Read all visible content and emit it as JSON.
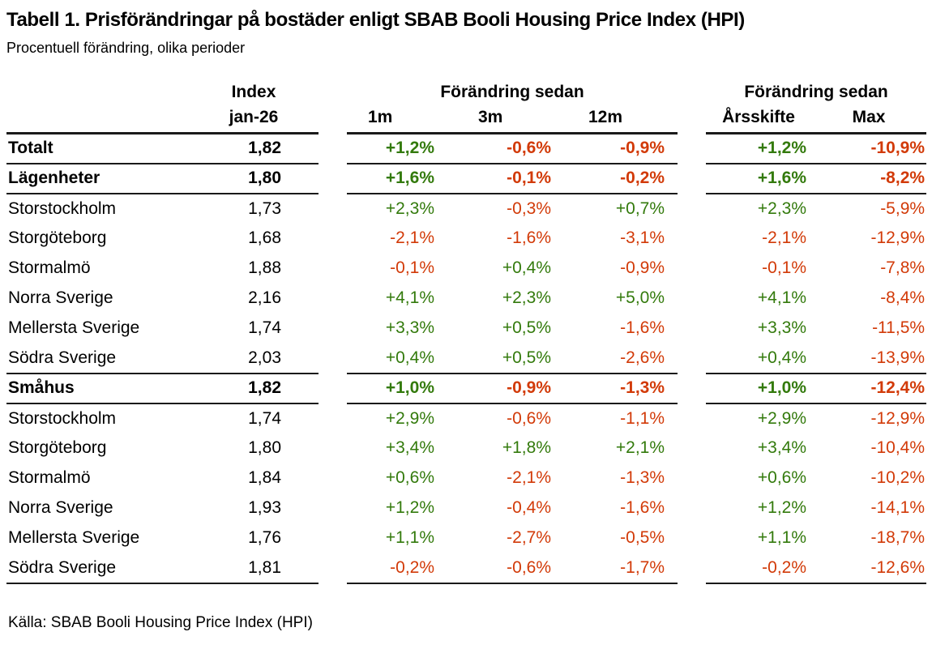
{
  "colors": {
    "positive": "#337a0c",
    "negative": "#d23a08",
    "rule": "#1a1a1a",
    "text": "#000000"
  },
  "chart_data": {
    "type": "table",
    "title": "Tabell 1. Prisförändringar på bostäder enligt SBAB Booli Housing Price Index (HPI)",
    "subtitle": "Procentuell förändring, olika perioder",
    "source": "Källa: SBAB Booli Housing Price Index (HPI)",
    "column_groups": [
      "Index",
      "Förändring sedan",
      "Förändring sedan"
    ],
    "columns": [
      "jan-26",
      "1m",
      "3m",
      "12m",
      "Årsskifte",
      "Max"
    ],
    "rows": [
      {
        "label": "Totalt",
        "index": "1,82",
        "m1": "+1,2%",
        "m3": "-0,6%",
        "m12": "-0,9%",
        "ytd": "+1,2%",
        "max": "-10,9%",
        "bold": true,
        "rule_below": true
      },
      {
        "label": "Lägenheter",
        "index": "1,80",
        "m1": "+1,6%",
        "m3": "-0,1%",
        "m12": "-0,2%",
        "ytd": "+1,6%",
        "max": "-8,2%",
        "bold": true,
        "rule_below": true
      },
      {
        "label": "Storstockholm",
        "index": "1,73",
        "m1": "+2,3%",
        "m3": "-0,3%",
        "m12": "+0,7%",
        "ytd": "+2,3%",
        "max": "-5,9%",
        "bold": false,
        "rule_below": false
      },
      {
        "label": "Storgöteborg",
        "index": "1,68",
        "m1": "-2,1%",
        "m3": "-1,6%",
        "m12": "-3,1%",
        "ytd": "-2,1%",
        "max": "-12,9%",
        "bold": false,
        "rule_below": false
      },
      {
        "label": "Stormalmö",
        "index": "1,88",
        "m1": "-0,1%",
        "m3": "+0,4%",
        "m12": "-0,9%",
        "ytd": "-0,1%",
        "max": "-7,8%",
        "bold": false,
        "rule_below": false
      },
      {
        "label": "Norra Sverige",
        "index": "2,16",
        "m1": "+4,1%",
        "m3": "+2,3%",
        "m12": "+5,0%",
        "ytd": "+4,1%",
        "max": "-8,4%",
        "bold": false,
        "rule_below": false
      },
      {
        "label": "Mellersta Sverige",
        "index": "1,74",
        "m1": "+3,3%",
        "m3": "+0,5%",
        "m12": "-1,6%",
        "ytd": "+3,3%",
        "max": "-11,5%",
        "bold": false,
        "rule_below": false
      },
      {
        "label": "Södra Sverige",
        "index": "2,03",
        "m1": "+0,4%",
        "m3": "+0,5%",
        "m12": "-2,6%",
        "ytd": "+0,4%",
        "max": "-13,9%",
        "bold": false,
        "rule_below": true
      },
      {
        "label": "Småhus",
        "index": "1,82",
        "m1": "+1,0%",
        "m3": "-0,9%",
        "m12": "-1,3%",
        "ytd": "+1,0%",
        "max": "-12,4%",
        "bold": true,
        "rule_below": true
      },
      {
        "label": "Storstockholm",
        "index": "1,74",
        "m1": "+2,9%",
        "m3": "-0,6%",
        "m12": "-1,1%",
        "ytd": "+2,9%",
        "max": "-12,9%",
        "bold": false,
        "rule_below": false
      },
      {
        "label": "Storgöteborg",
        "index": "1,80",
        "m1": "+3,4%",
        "m3": "+1,8%",
        "m12": "+2,1%",
        "ytd": "+3,4%",
        "max": "-10,4%",
        "bold": false,
        "rule_below": false
      },
      {
        "label": "Stormalmö",
        "index": "1,84",
        "m1": "+0,6%",
        "m3": "-2,1%",
        "m12": "-1,3%",
        "ytd": "+0,6%",
        "max": "-10,2%",
        "bold": false,
        "rule_below": false
      },
      {
        "label": "Norra Sverige",
        "index": "1,93",
        "m1": "+1,2%",
        "m3": "-0,4%",
        "m12": "-1,6%",
        "ytd": "+1,2%",
        "max": "-14,1%",
        "bold": false,
        "rule_below": false
      },
      {
        "label": "Mellersta Sverige",
        "index": "1,76",
        "m1": "+1,1%",
        "m3": "-2,7%",
        "m12": "-0,5%",
        "ytd": "+1,1%",
        "max": "-18,7%",
        "bold": false,
        "rule_below": false
      },
      {
        "label": "Södra Sverige",
        "index": "1,81",
        "m1": "-0,2%",
        "m3": "-0,6%",
        "m12": "-1,7%",
        "ytd": "-0,2%",
        "max": "-12,6%",
        "bold": false,
        "rule_below": true
      }
    ]
  }
}
